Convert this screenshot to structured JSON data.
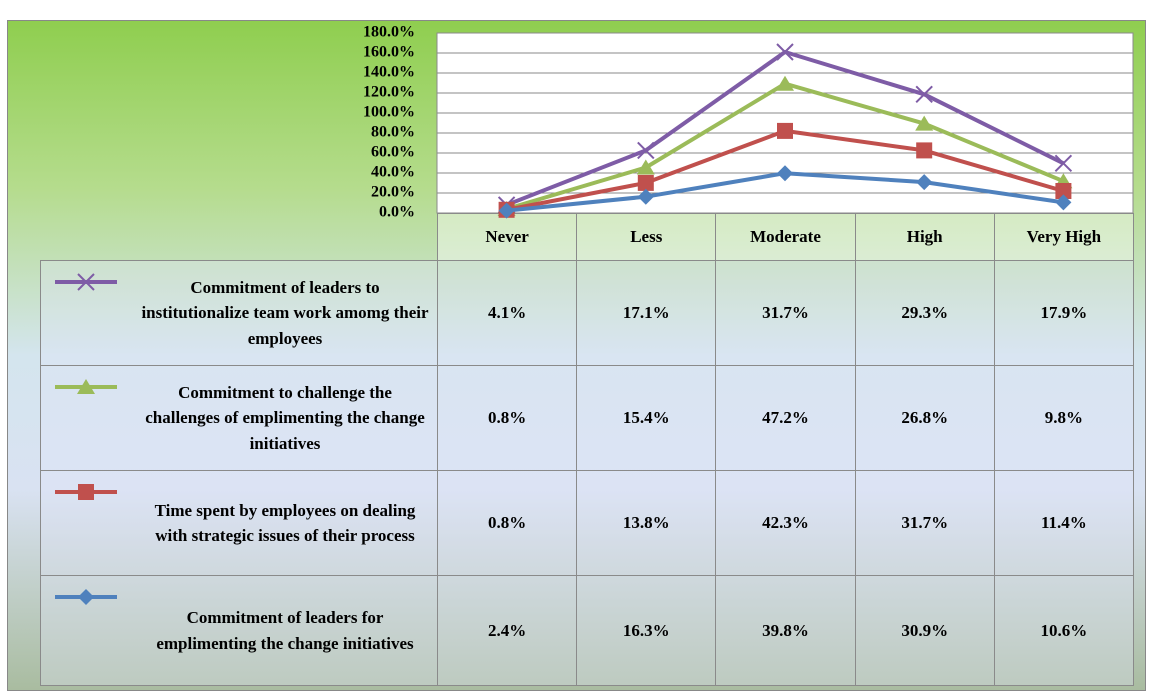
{
  "chart_data": {
    "type": "stacked_line",
    "categories": [
      "Never",
      "Less",
      "Moderate",
      "High",
      "Very High"
    ],
    "ylim": [
      0,
      180
    ],
    "yticks": [
      {
        "value": 0,
        "label": "0.0%"
      },
      {
        "value": 20,
        "label": "20.0%"
      },
      {
        "value": 40,
        "label": "40.0%"
      },
      {
        "value": 60,
        "label": "60.0%"
      },
      {
        "value": 80,
        "label": "80.0%"
      },
      {
        "value": 100,
        "label": "100.0%"
      },
      {
        "value": 120,
        "label": "120.0%"
      },
      {
        "value": 140,
        "label": "140.0%"
      },
      {
        "value": 160,
        "label": "160.0%"
      },
      {
        "value": 180,
        "label": "180.0%"
      }
    ],
    "grid": true,
    "series": [
      {
        "name": "Commitment of leaders to institutionalize team work amomg their employees",
        "color": "#7e5ca6",
        "marker": "x",
        "values": [
          4.1,
          17.1,
          31.7,
          29.3,
          17.9
        ],
        "value_labels": [
          "4.1%",
          "17.1%",
          "31.7%",
          "29.3%",
          "17.9%"
        ]
      },
      {
        "name": "Commitment to challenge the challenges of emplimenting the change initiatives",
        "color": "#9bbb59",
        "marker": "triangle",
        "values": [
          0.8,
          15.4,
          47.2,
          26.8,
          9.8
        ],
        "value_labels": [
          "0.8%",
          "15.4%",
          "47.2%",
          "26.8%",
          "9.8%"
        ]
      },
      {
        "name": "Time spent by employees on dealing with strategic issues of their process",
        "color": "#c0504d",
        "marker": "square",
        "values": [
          0.8,
          13.8,
          42.3,
          31.7,
          11.4
        ],
        "value_labels": [
          "0.8%",
          "13.8%",
          "42.3%",
          "31.7%",
          "11.4%"
        ]
      },
      {
        "name": "Commitment of leaders for emplimenting the change initiatives",
        "color": "#4f81bd",
        "marker": "diamond",
        "values": [
          2.4,
          16.3,
          39.8,
          30.9,
          10.6
        ],
        "value_labels": [
          "2.4%",
          "16.3%",
          "39.8%",
          "30.9%",
          "10.6%"
        ]
      }
    ]
  }
}
